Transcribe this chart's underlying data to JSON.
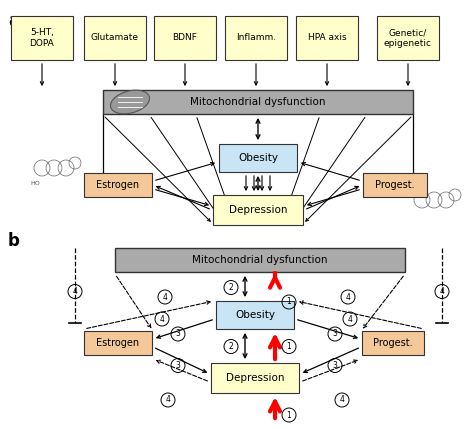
{
  "bg_color": "#ffffff",
  "top_boxes": [
    "5-HT,\nDOPA",
    "Glutamate",
    "BDNF",
    "Inflamm.",
    "HPA axis",
    "Genetic/\nepigenetic"
  ],
  "top_box_color": "#ffffcc",
  "mito_box_color": "#aaaaaa",
  "mito_text": "Mitochondrial dysfunction",
  "obesity_box_color": "#c8e4f5",
  "obesity_text": "Obesity",
  "depression_box_color": "#ffffcc",
  "depression_text": "Depression",
  "estrogen_box_color": "#f5c89a",
  "estrogen_text": "Estrogen",
  "progest_box_color": "#f5c89a",
  "progest_text": "Progest."
}
